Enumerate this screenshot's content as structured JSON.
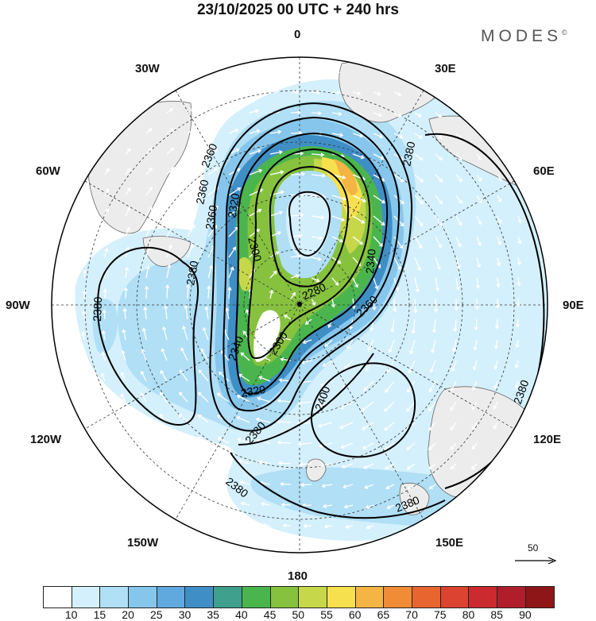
{
  "title": "23/10/2025  00 UTC  + 240 hrs",
  "brand": "MODES",
  "brand_mark": "©",
  "longitude_labels": {
    "top": "0",
    "bottom": "180",
    "left": "90W",
    "right": "90E",
    "w30": "30W",
    "w60": "60W",
    "w120": "120W",
    "w150": "150W",
    "e30": "30E",
    "e60": "60E",
    "e120": "120E",
    "e150": "150E"
  },
  "contour_labels": [
    "2360",
    "2360",
    "2360",
    "2380",
    "2320",
    "2300",
    "2380",
    "2280",
    "2340",
    "2360",
    "2380",
    "2340",
    "2300",
    "2320",
    "2380",
    "2400",
    "2380",
    "2380",
    "2380"
  ],
  "reference_vector_label": "50",
  "colorbar": {
    "colors": [
      "#ffffff",
      "#d4f0fc",
      "#b0dff6",
      "#86c6ec",
      "#5fa9de",
      "#3f8fc6",
      "#3ea08d",
      "#4ab54d",
      "#86c23e",
      "#c6d84a",
      "#f6e04e",
      "#f4b544",
      "#ef8c35",
      "#e86530",
      "#dc4330",
      "#cb2a2e",
      "#b01e2b",
      "#8e1518"
    ],
    "ticks": [
      "10",
      "15",
      "20",
      "25",
      "30",
      "35",
      "40",
      "45",
      "50",
      "55",
      "60",
      "65",
      "70",
      "75",
      "80",
      "85",
      "90"
    ]
  }
}
